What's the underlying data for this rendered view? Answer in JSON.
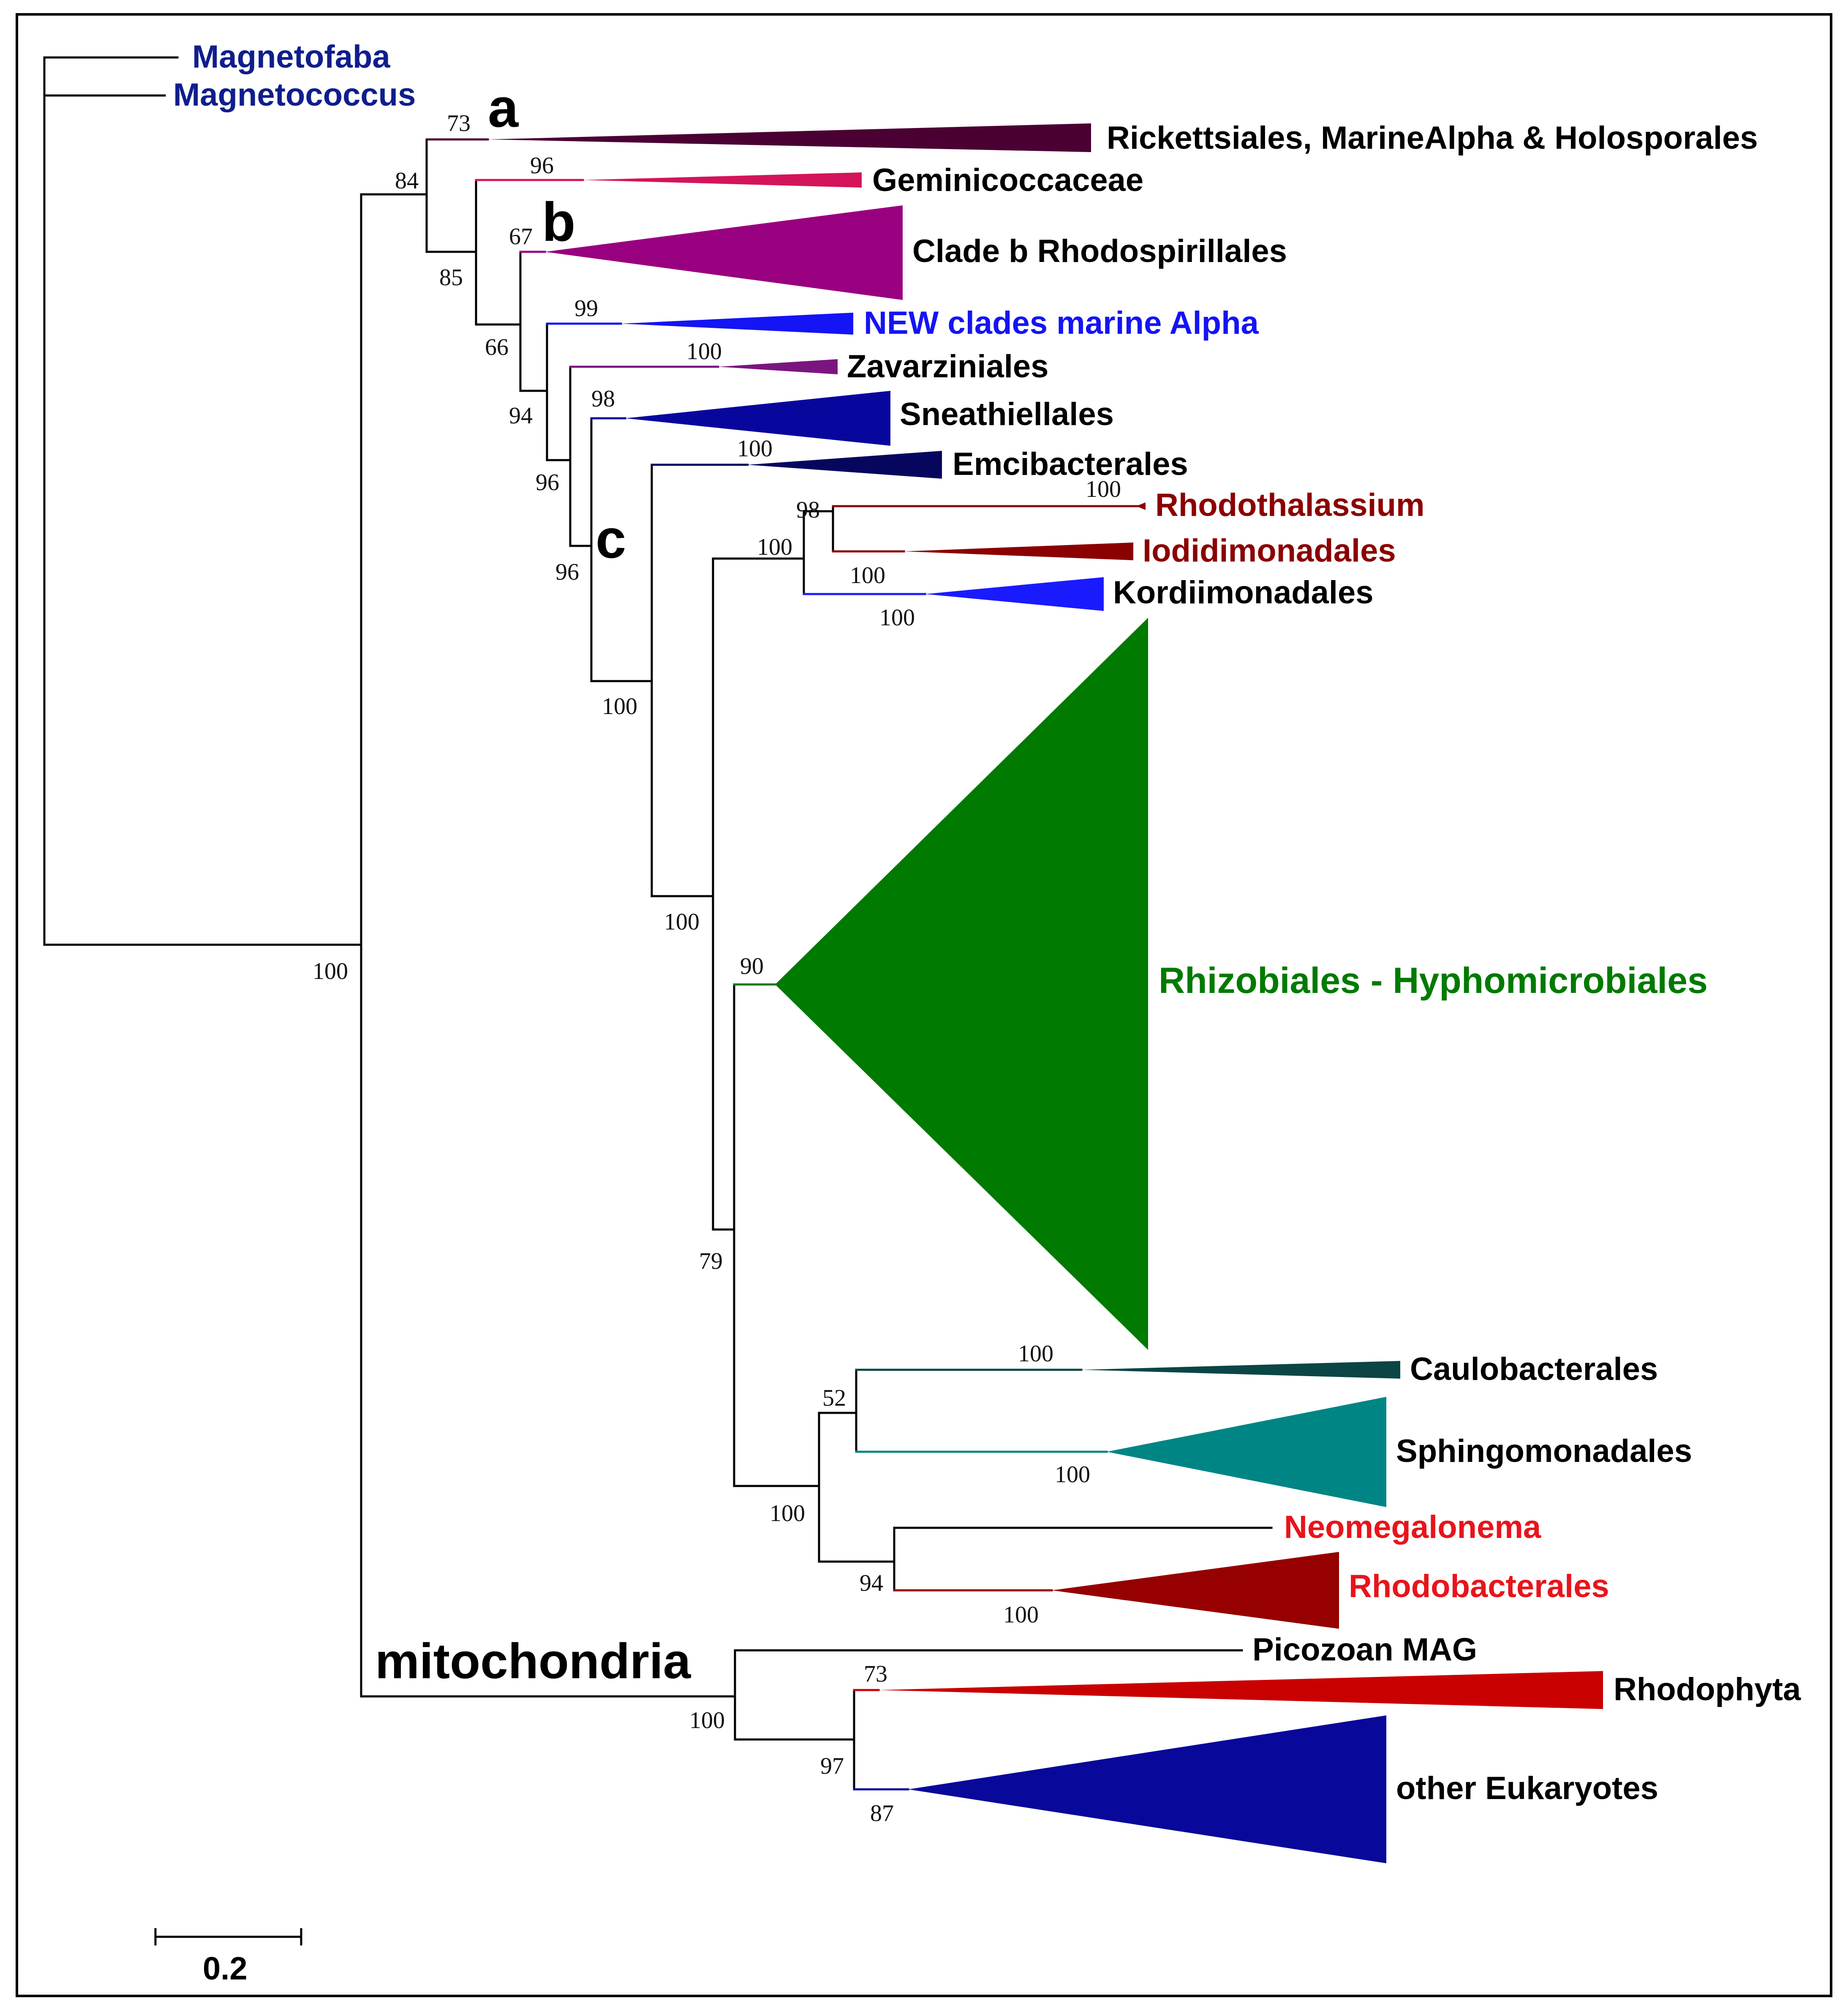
{
  "figure": {
    "type": "phylogenetic tree (alphaproteobacteria and mitochondria)"
  },
  "colors": {
    "outgroup": "#0f1e8c",
    "rickettsiales": "#4a0033",
    "geminicoccaceae": "#d4145a",
    "clade_b": "#990080",
    "new_clades": "#1414f5",
    "zavarziniales": "#7a1580",
    "sneathiellales": "#07079e",
    "emcibacterales": "#06065e",
    "rhodothalassium": "#8b0000",
    "kordiimonadales": "#1a1aff",
    "rhizobiales": "#007a00",
    "caulobacterales": "#0b4545",
    "sphingomonadales": "#008585",
    "red_label": "#e8141c",
    "rhodobacterales": "#960000",
    "rhodophyta": "#c90000",
    "other_eukaryotes": "#08089a",
    "black": "#000000"
  },
  "taxa": {
    "magnetofaba": "Magnetofaba",
    "magnetococcus": "Magnetococcus",
    "rickettsiales": "Rickettsiales, MarineAlpha & Holosporales",
    "geminicoccaceae": "Geminicoccaceae",
    "clade_b": "Clade b Rhodospirillales",
    "new_clades": "NEW clades marine Alpha",
    "zavarziniales": "Zavarziniales",
    "sneathiellales": "Sneathiellales",
    "emcibacterales": "Emcibacterales",
    "rhodothalassium": "Rhodothalassium",
    "iodidimonadales": "Iodidimonadales",
    "kordiimonadales": "Kordiimonadales",
    "rhizobiales": "Rhizobiales - Hyphomicrobiales",
    "caulobacterales": "Caulobacterales",
    "sphingomonadales": "Sphingomonadales",
    "neomegalonema": "Neomegalonema",
    "rhodobacterales": "Rhodobacterales",
    "picozoan": "Picozoan MAG",
    "rhodophyta": "Rhodophyta",
    "other_eukaryotes": "other Eukaryotes"
  },
  "support_values": {
    "root_split": "100",
    "alpha_node": "84",
    "rickettsiales_clade": "73",
    "after_rick": "85",
    "geminicoccaceae": "96",
    "after_gem": "66",
    "clade_b": "67",
    "after_b": "94",
    "new_clades": "99",
    "after_new": "96",
    "zavarziniales": "100",
    "clade_c_node": "96",
    "sneathiellales": "98",
    "after_sneath": "100",
    "emcibacterales": "100",
    "after_emci": "100",
    "rhodo_kord": "100",
    "rhodo_iodi": "98",
    "rhodothalassium": "100",
    "iodidimonadales": "100",
    "kordiimonadales": "100",
    "rhizo_rest": "79",
    "rhizobiales": "90",
    "caulo_rhodobac": "100",
    "caulo_sphingo": "52",
    "caulobacterales": "100",
    "sphingomonadales": "100",
    "neomega_rhodobac": "94",
    "rhodobacterales": "100",
    "mito_node": "100",
    "rhodophyta_euk": "97",
    "rhodophyta": "73",
    "other_eukaryotes": "87"
  },
  "clade_markers": {
    "a": "a",
    "b": "b",
    "c": "c",
    "mitochondria": "mitochondria"
  },
  "scale_bar": {
    "label": "0.2",
    "value": 0.2
  }
}
